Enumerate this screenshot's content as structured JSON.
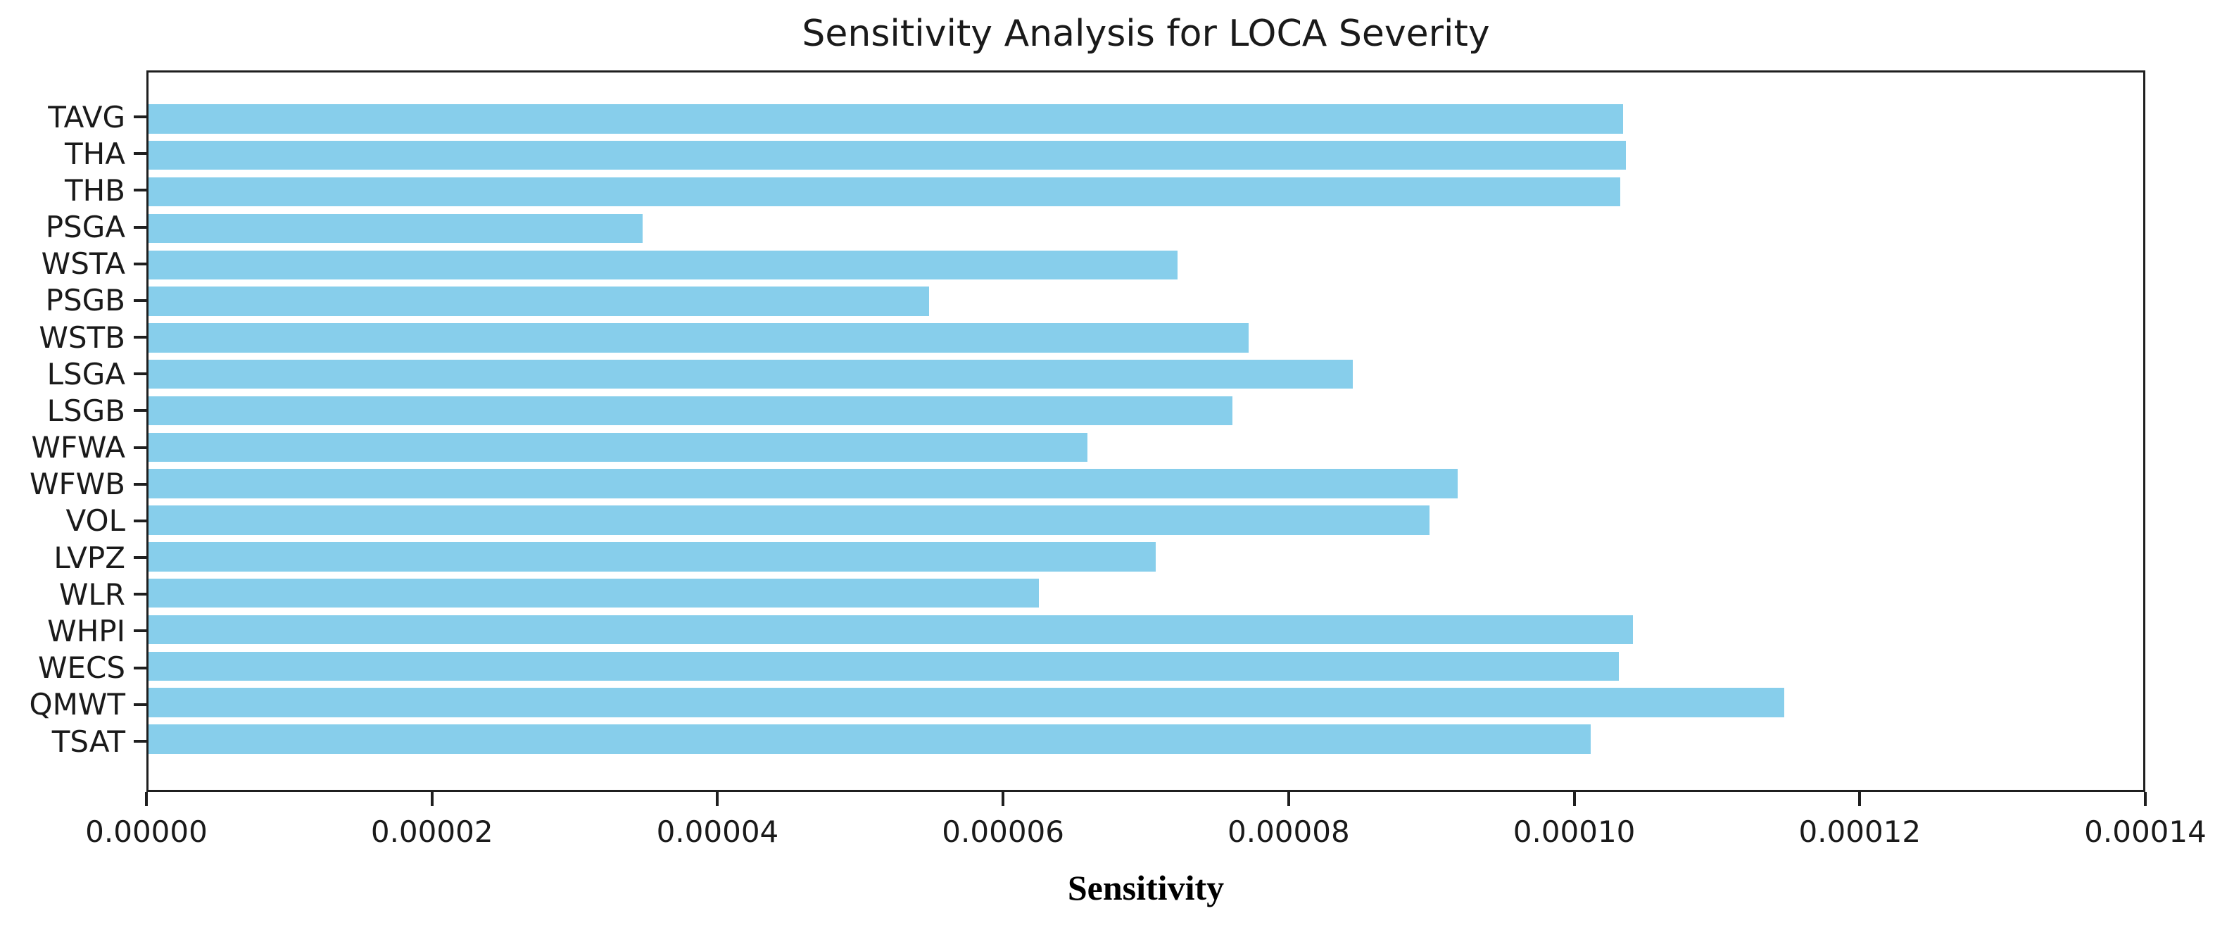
{
  "chart_data": {
    "type": "bar",
    "orientation": "horizontal",
    "title": "Sensitivity Analysis for LOCA Severity",
    "xlabel": "Sensitivity",
    "ylabel": "",
    "categories": [
      "TAVG",
      "THA",
      "THB",
      "PSGA",
      "WSTA",
      "PSGB",
      "WSTB",
      "LSGA",
      "LSGB",
      "WFWA",
      "WFWB",
      "VOL",
      "LVPZ",
      "WLR",
      "WHPI",
      "WECS",
      "QMWT",
      "TSAT"
    ],
    "values": [
      0.0001035,
      0.0001037,
      0.0001033,
      3.47e-05,
      7.22e-05,
      5.48e-05,
      7.72e-05,
      8.45e-05,
      7.61e-05,
      6.59e-05,
      9.19e-05,
      8.99e-05,
      7.07e-05,
      6.25e-05,
      0.0001042,
      0.0001032,
      0.0001148,
      0.0001012
    ],
    "xlim": [
      0,
      0.00014
    ],
    "x_tick_values": [
      0,
      2e-05,
      4e-05,
      6e-05,
      8e-05,
      0.0001,
      0.00012,
      0.00014
    ],
    "x_tick_labels": [
      "0.00000",
      "0.00002",
      "0.00004",
      "0.00006",
      "0.00008",
      "0.00010",
      "0.00012",
      "0.00014"
    ],
    "grid": false,
    "legend": null,
    "bar_color": "#87CEEB",
    "axis_color": "#1f1f1f",
    "background_color": "#ffffff"
  }
}
